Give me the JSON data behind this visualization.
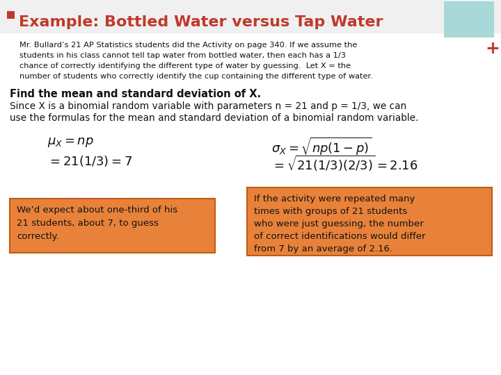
{
  "title": "Example: Bottled Water versus Tap Water",
  "title_color": "#C0392B",
  "bullet_color": "#C0392B",
  "bg_color": "#FFFFFF",
  "teal_box_color": "#A8D8D8",
  "plus_color": "#C0392B",
  "paragraph_line1": "Mr. Bullard’s 21 AP Statistics students did the Activity on page 340. If we assume the",
  "paragraph_line2": "students in his class cannot tell tap water from bottled water, then each has a 1/3",
  "paragraph_line3": "chance of correctly identifying the different type of water by guessing.  Let X = the",
  "paragraph_line4": "number of students who correctly identify the cup containing the different type of water.",
  "find_text": "Find the mean and standard deviation of X.",
  "since_line1": "Since X is a binomial random variable with parameters n = 21 and p = 1/3, we can",
  "since_line2": "use the formulas for the mean and standard deviation of a binomial random variable.",
  "box1_color": "#E8823A",
  "box1_border": "#C05A10",
  "box1_lines": [
    "We’d expect about one-third of his",
    "21 students, about 7, to guess",
    "correctly."
  ],
  "box2_color": "#E8823A",
  "box2_border": "#C05A10",
  "box2_lines": [
    "If the activity were repeated many",
    "times with groups of 21 students",
    "who were just guessing, the number",
    "of correct identifications would differ",
    "from 7 by an average of 2.16."
  ]
}
